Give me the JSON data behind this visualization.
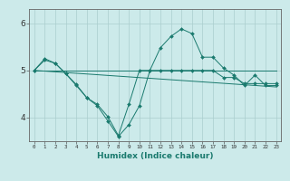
{
  "xlabel": "Humidex (Indice chaleur)",
  "background_color": "#cceaea",
  "grid_color": "#aacece",
  "line_color": "#1a7a6e",
  "xlim": [
    -0.5,
    23.5
  ],
  "ylim": [
    3.5,
    6.3
  ],
  "yticks": [
    4,
    5,
    6
  ],
  "xticks": [
    0,
    1,
    2,
    3,
    4,
    5,
    6,
    7,
    8,
    9,
    10,
    11,
    12,
    13,
    14,
    15,
    16,
    17,
    18,
    19,
    20,
    21,
    22,
    23
  ],
  "series1_x": [
    0,
    1,
    2,
    3,
    4,
    5,
    6,
    7,
    8,
    9,
    10,
    11,
    12,
    13,
    14,
    15,
    16,
    17,
    18,
    19,
    20,
    21,
    22,
    23
  ],
  "series1_y": [
    5.0,
    5.22,
    5.15,
    4.93,
    4.7,
    4.42,
    4.28,
    4.02,
    3.62,
    4.28,
    5.0,
    5.0,
    5.0,
    5.0,
    5.0,
    5.0,
    5.0,
    5.0,
    4.85,
    4.85,
    4.72,
    4.72,
    4.72,
    4.72
  ],
  "series2_x": [
    0,
    1,
    2,
    3,
    4,
    5,
    6,
    7,
    8,
    9,
    10,
    11,
    12,
    13,
    14,
    15,
    16,
    17,
    18,
    19,
    20,
    21,
    22,
    23
  ],
  "series2_y": [
    5.0,
    5.25,
    5.15,
    4.93,
    4.68,
    4.42,
    4.25,
    3.93,
    3.6,
    3.85,
    4.25,
    5.0,
    5.48,
    5.72,
    5.88,
    5.78,
    5.28,
    5.28,
    5.05,
    4.9,
    4.68,
    4.9,
    4.68,
    4.68
  ],
  "series3_x": [
    0,
    23
  ],
  "series3_y": [
    5.0,
    5.0
  ],
  "series4_x": [
    0,
    23
  ],
  "series4_y": [
    5.0,
    4.65
  ]
}
